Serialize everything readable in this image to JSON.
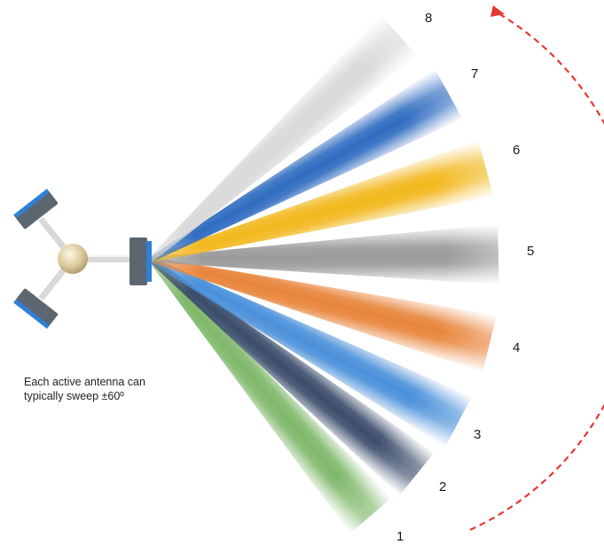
{
  "caption": {
    "line1": "Each active antenna can",
    "line2": "typically sweep ±60º"
  },
  "beams": [
    {
      "label": "1",
      "color": "#7fb86a",
      "icon": "beam-1"
    },
    {
      "label": "2",
      "color": "#3b4d6b",
      "icon": "beam-2"
    },
    {
      "label": "3",
      "color": "#4a90d9",
      "icon": "beam-3"
    },
    {
      "label": "4",
      "color": "#e8843a",
      "icon": "beam-4"
    },
    {
      "label": "5",
      "color": "#9a9a9a",
      "icon": "beam-5"
    },
    {
      "label": "6",
      "color": "#f2b81e",
      "icon": "beam-6"
    },
    {
      "label": "7",
      "color": "#2f6cc0",
      "icon": "beam-7"
    },
    {
      "label": "8",
      "color": "#d9d9d9",
      "icon": "beam-8"
    }
  ],
  "sweep_arrow_color": "#e53935",
  "antenna_color": "#5b6670",
  "antenna_accent": "#2f7fd6"
}
